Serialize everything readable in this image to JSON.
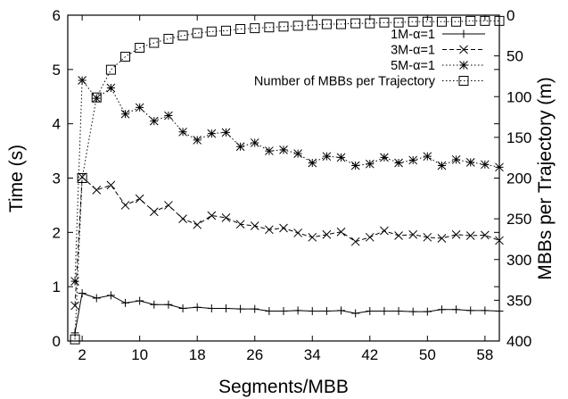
{
  "chart_data": {
    "type": "line",
    "xlabel": "Segments/MBB",
    "ylabel": "Time (s)",
    "y2label": "MBBs per Trajectory (m)",
    "xlim": [
      0,
      60
    ],
    "ylim": [
      0,
      6
    ],
    "y2lim": [
      400,
      0
    ],
    "y2_inverted": true,
    "x_ticks": [
      2,
      10,
      18,
      26,
      34,
      42,
      50,
      58
    ],
    "x_tick_labels": [
      "2",
      "10",
      "18",
      "26",
      "34",
      "42",
      "50",
      "58"
    ],
    "y_ticks": [
      0,
      1,
      2,
      3,
      4,
      5,
      6
    ],
    "y_tick_labels": [
      "0",
      "1",
      "2",
      "3",
      "4",
      "5",
      "6"
    ],
    "y2_ticks": [
      0,
      50,
      100,
      150,
      200,
      250,
      300,
      350,
      400
    ],
    "y2_tick_labels": [
      "0",
      "50",
      "100",
      "150",
      "200",
      "250",
      "300",
      "350",
      "400"
    ],
    "grid": false,
    "legend_position": "top-right",
    "series": [
      {
        "name": "1M-α=1",
        "axis": "left",
        "marker": "plus",
        "dash": "solid",
        "x": [
          1,
          2,
          4,
          6,
          8,
          10,
          12,
          14,
          16,
          18,
          20,
          22,
          24,
          26,
          28,
          30,
          32,
          34,
          36,
          38,
          40,
          42,
          44,
          46,
          48,
          50,
          52,
          54,
          56,
          58,
          60
        ],
        "y": [
          0.15,
          0.88,
          0.79,
          0.84,
          0.7,
          0.74,
          0.67,
          0.67,
          0.6,
          0.62,
          0.6,
          0.6,
          0.59,
          0.59,
          0.55,
          0.55,
          0.56,
          0.55,
          0.55,
          0.56,
          0.51,
          0.55,
          0.55,
          0.55,
          0.54,
          0.54,
          0.58,
          0.58,
          0.56,
          0.56,
          0.55
        ]
      },
      {
        "name": "3M-α=1",
        "axis": "left",
        "marker": "x",
        "dash": "dashed",
        "x": [
          1,
          2,
          4,
          6,
          8,
          10,
          12,
          14,
          16,
          18,
          20,
          22,
          24,
          26,
          28,
          30,
          32,
          34,
          36,
          38,
          40,
          42,
          44,
          46,
          48,
          50,
          52,
          54,
          56,
          58,
          60
        ],
        "y": [
          0.65,
          3.02,
          2.78,
          2.87,
          2.5,
          2.62,
          2.38,
          2.5,
          2.25,
          2.14,
          2.31,
          2.27,
          2.15,
          2.12,
          2.05,
          2.08,
          1.99,
          1.91,
          1.96,
          2.01,
          1.83,
          1.91,
          2.03,
          1.94,
          1.96,
          1.91,
          1.89,
          1.96,
          1.94,
          1.95,
          1.85
        ]
      },
      {
        "name": "5M-α=1",
        "axis": "left",
        "marker": "star",
        "dash": "dotted",
        "x": [
          1,
          2,
          4,
          6,
          8,
          10,
          12,
          14,
          16,
          18,
          20,
          22,
          24,
          26,
          28,
          30,
          32,
          34,
          36,
          38,
          40,
          42,
          44,
          46,
          48,
          50,
          52,
          54,
          56,
          58,
          60
        ],
        "y": [
          1.1,
          4.8,
          4.47,
          4.66,
          4.18,
          4.3,
          4.05,
          4.15,
          3.85,
          3.7,
          3.82,
          3.84,
          3.58,
          3.65,
          3.5,
          3.52,
          3.45,
          3.28,
          3.4,
          3.38,
          3.23,
          3.26,
          3.38,
          3.28,
          3.33,
          3.4,
          3.23,
          3.34,
          3.29,
          3.25,
          3.2
        ]
      },
      {
        "name": "Number of MBBs per Trajectory",
        "axis": "right",
        "marker": "square",
        "dash": "dotted",
        "x": [
          1,
          2,
          4,
          6,
          8,
          10,
          12,
          14,
          16,
          18,
          20,
          22,
          24,
          26,
          28,
          30,
          32,
          34,
          36,
          38,
          40,
          42,
          44,
          46,
          48,
          50,
          52,
          54,
          56,
          58,
          60
        ],
        "y": [
          398,
          200,
          101,
          67,
          51,
          40,
          34,
          29,
          25,
          22,
          20,
          19,
          17,
          16,
          15,
          14,
          13,
          12,
          11,
          11,
          10,
          10,
          9,
          9,
          8,
          8,
          8,
          8,
          7,
          7,
          7
        ]
      }
    ]
  }
}
